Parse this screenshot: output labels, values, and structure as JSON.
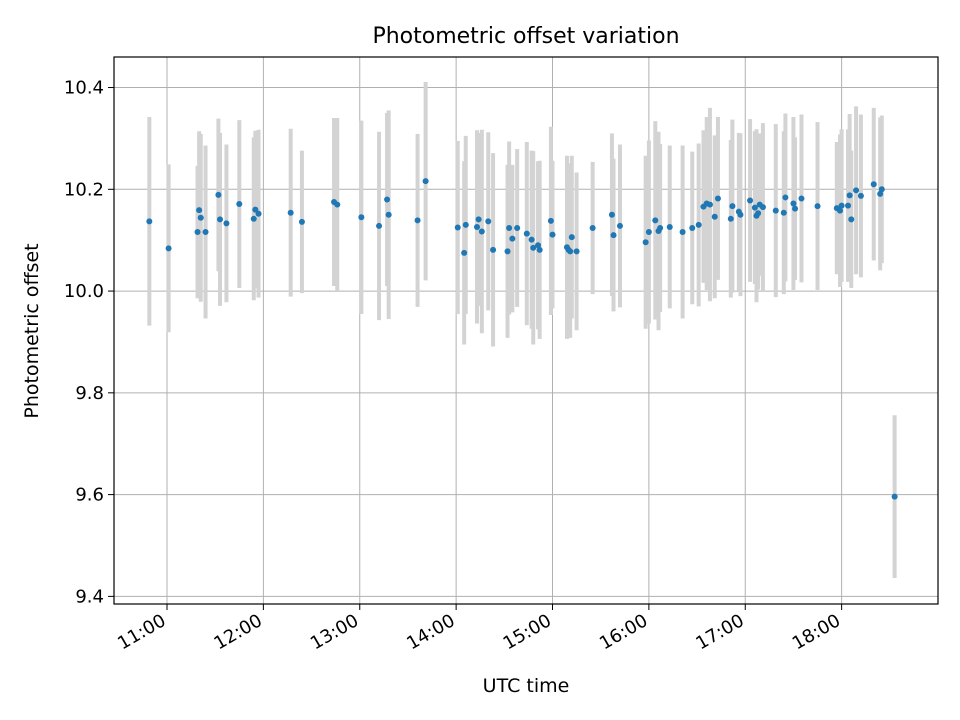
{
  "chart_data": {
    "type": "scatter",
    "title": "Photometric offset variation",
    "xlabel": "UTC time",
    "ylabel": "Photometric offset",
    "xlim": [
      "10:27",
      "19:00"
    ],
    "ylim": [
      9.385,
      10.46
    ],
    "x_ticks": [
      "11:00",
      "12:00",
      "13:00",
      "14:00",
      "15:00",
      "16:00",
      "17:00",
      "18:00"
    ],
    "y_ticks": [
      "9.4",
      "9.6",
      "9.8",
      "10.0",
      "10.2",
      "10.4"
    ],
    "grid": true,
    "legend": "none",
    "colors": {
      "points": "#1f77b4",
      "error_bars": "#d3d3d3",
      "grid": "#b0b0b0"
    },
    "series": [
      {
        "x": [
          "10:49",
          "11:01",
          "11:19",
          "11:20",
          "11:21",
          "11:24",
          "11:32",
          "11:33",
          "11:37",
          "11:45",
          "11:54",
          "11:55",
          "11:57",
          "12:17",
          "12:24",
          "12:44",
          "12:46",
          "13:01",
          "13:12",
          "13:17",
          "13:18",
          "13:36",
          "13:41",
          "14:01",
          "14:05",
          "14:06",
          "14:13",
          "14:14",
          "14:16",
          "14:20",
          "14:23",
          "14:32",
          "14:33",
          "14:35",
          "14:38",
          "14:44",
          "14:47",
          "14:48",
          "14:51",
          "14:52",
          "14:59",
          "15:00",
          "15:09",
          "15:10",
          "15:11",
          "15:12",
          "15:15",
          "15:25",
          "15:37",
          "15:38",
          "15:42",
          "15:58",
          "16:00",
          "16:04",
          "16:06",
          "16:07",
          "16:13",
          "16:21",
          "16:27",
          "16:31",
          "16:34",
          "16:36",
          "16:38",
          "16:41",
          "16:43",
          "16:51",
          "16:52",
          "16:56",
          "16:57",
          "17:03",
          "17:06",
          "17:07",
          "17:08",
          "17:09",
          "17:11",
          "17:19",
          "17:24",
          "17:25",
          "17:30",
          "17:31",
          "17:35",
          "17:45",
          "17:57",
          "17:59",
          "18:00",
          "18:04",
          "18:05",
          "18:06",
          "18:09",
          "18:12",
          "18:20",
          "18:24",
          "18:25",
          "18:33"
        ],
        "y": [
          10.137,
          10.084,
          10.116,
          10.159,
          10.144,
          10.116,
          10.189,
          10.141,
          10.133,
          10.171,
          10.142,
          10.16,
          10.152,
          10.154,
          10.136,
          10.175,
          10.17,
          10.145,
          10.128,
          10.18,
          10.15,
          10.139,
          10.216,
          10.125,
          10.075,
          10.13,
          10.126,
          10.141,
          10.117,
          10.137,
          10.081,
          10.078,
          10.124,
          10.103,
          10.124,
          10.113,
          10.101,
          10.085,
          10.09,
          10.081,
          10.138,
          10.111,
          10.086,
          10.081,
          10.078,
          10.106,
          10.078,
          10.124,
          10.15,
          10.11,
          10.128,
          10.096,
          10.116,
          10.139,
          10.118,
          10.124,
          10.126,
          10.116,
          10.124,
          10.13,
          10.166,
          10.172,
          10.17,
          10.146,
          10.182,
          10.142,
          10.167,
          10.156,
          10.15,
          10.178,
          10.164,
          10.148,
          10.153,
          10.17,
          10.165,
          10.158,
          10.154,
          10.184,
          10.172,
          10.162,
          10.182,
          10.167,
          10.163,
          10.158,
          10.168,
          10.168,
          10.188,
          10.141,
          10.198,
          10.187,
          10.21,
          10.191,
          10.2,
          9.596
        ],
        "yerr": [
          0.205,
          0.165,
          0.13,
          0.155,
          0.165,
          0.17,
          0.15,
          0.17,
          0.155,
          0.165,
          0.16,
          0.155,
          0.165,
          0.165,
          0.14,
          0.165,
          0.17,
          0.19,
          0.185,
          0.17,
          0.205,
          0.17,
          0.195,
          0.17,
          0.18,
          0.175,
          0.19,
          0.17,
          0.2,
          0.175,
          0.19,
          0.17,
          0.17,
          0.145,
          0.155,
          0.18,
          0.175,
          0.19,
          0.165,
          0.175,
          0.185,
          0.145,
          0.18,
          0.17,
          0.17,
          0.16,
          0.155,
          0.13,
          0.16,
          0.15,
          0.16,
          0.17,
          0.18,
          0.195,
          0.195,
          0.165,
          0.16,
          0.17,
          0.15,
          0.16,
          0.15,
          0.17,
          0.19,
          0.16,
          0.16,
          0.155,
          0.17,
          0.155,
          0.16,
          0.16,
          0.15,
          0.17,
          0.15,
          0.14,
          0.165,
          0.17,
          0.16,
          0.165,
          0.17,
          0.14,
          0.165,
          0.165,
          0.13,
          0.15,
          0.15,
          0.15,
          0.16,
          0.135,
          0.165,
          0.16,
          0.15,
          0.15,
          0.145,
          0.16
        ]
      }
    ]
  }
}
